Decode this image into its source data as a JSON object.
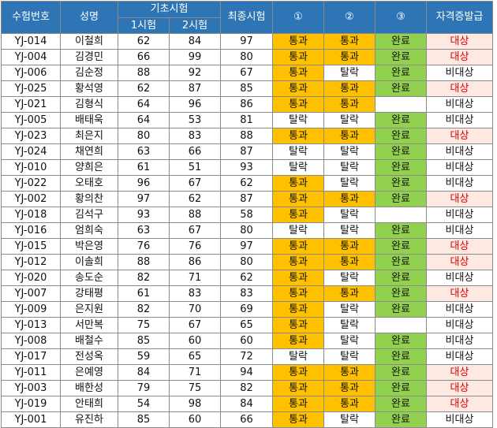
{
  "headers": {
    "exam_no": "수험번호",
    "name": "성명",
    "basic_exam": "기초시험",
    "exam1": "1시험",
    "exam2": "2시험",
    "final_exam": "최종시험",
    "c1": "①",
    "c2": "②",
    "c3": "③",
    "certificate": "자격증발급"
  },
  "colors": {
    "header_bg": "#2e75b6",
    "pass_bg": "#ffc000",
    "complete_bg": "#92d050",
    "target_bg": "#fde9e1",
    "target_text": "#e00000"
  },
  "rows": [
    {
      "id": "YJ-014",
      "name": "이철희",
      "s1": "62",
      "s2": "84",
      "final": "97",
      "c1": "통과",
      "c2": "통과",
      "c3": "완료",
      "cert": "대상"
    },
    {
      "id": "YJ-004",
      "name": "김경민",
      "s1": "66",
      "s2": "99",
      "final": "80",
      "c1": "통과",
      "c2": "통과",
      "c3": "완료",
      "cert": "대상"
    },
    {
      "id": "YJ-006",
      "name": "김순정",
      "s1": "88",
      "s2": "92",
      "final": "67",
      "c1": "통과",
      "c2": "탈락",
      "c3": "완료",
      "cert": "비대상"
    },
    {
      "id": "YJ-025",
      "name": "황석영",
      "s1": "62",
      "s2": "87",
      "final": "85",
      "c1": "통과",
      "c2": "통과",
      "c3": "완료",
      "cert": "대상"
    },
    {
      "id": "YJ-021",
      "name": "김형식",
      "s1": "64",
      "s2": "96",
      "final": "86",
      "c1": "통과",
      "c2": "통과",
      "c3": "",
      "cert": "비대상"
    },
    {
      "id": "YJ-005",
      "name": "배태욱",
      "s1": "64",
      "s2": "53",
      "final": "81",
      "c1": "탈락",
      "c2": "탈락",
      "c3": "완료",
      "cert": "비대상"
    },
    {
      "id": "YJ-023",
      "name": "최은지",
      "s1": "80",
      "s2": "83",
      "final": "88",
      "c1": "통과",
      "c2": "통과",
      "c3": "완료",
      "cert": "대상"
    },
    {
      "id": "YJ-024",
      "name": "채연희",
      "s1": "63",
      "s2": "66",
      "final": "87",
      "c1": "탈락",
      "c2": "탈락",
      "c3": "완료",
      "cert": "비대상"
    },
    {
      "id": "YJ-010",
      "name": "양희은",
      "s1": "61",
      "s2": "51",
      "final": "93",
      "c1": "탈락",
      "c2": "탈락",
      "c3": "완료",
      "cert": "비대상"
    },
    {
      "id": "YJ-022",
      "name": "오태호",
      "s1": "96",
      "s2": "67",
      "final": "62",
      "c1": "통과",
      "c2": "탈락",
      "c3": "완료",
      "cert": "비대상"
    },
    {
      "id": "YJ-002",
      "name": "황의찬",
      "s1": "97",
      "s2": "62",
      "final": "87",
      "c1": "통과",
      "c2": "통과",
      "c3": "완료",
      "cert": "대상"
    },
    {
      "id": "YJ-018",
      "name": "김석구",
      "s1": "93",
      "s2": "88",
      "final": "58",
      "c1": "통과",
      "c2": "탈락",
      "c3": "",
      "cert": "비대상"
    },
    {
      "id": "YJ-016",
      "name": "엄희숙",
      "s1": "63",
      "s2": "67",
      "final": "80",
      "c1": "탈락",
      "c2": "탈락",
      "c3": "완료",
      "cert": "비대상"
    },
    {
      "id": "YJ-015",
      "name": "박은영",
      "s1": "76",
      "s2": "76",
      "final": "97",
      "c1": "통과",
      "c2": "통과",
      "c3": "완료",
      "cert": "대상"
    },
    {
      "id": "YJ-012",
      "name": "이솔희",
      "s1": "88",
      "s2": "86",
      "final": "80",
      "c1": "통과",
      "c2": "통과",
      "c3": "완료",
      "cert": "대상"
    },
    {
      "id": "YJ-020",
      "name": "송도순",
      "s1": "82",
      "s2": "71",
      "final": "62",
      "c1": "통과",
      "c2": "탈락",
      "c3": "완료",
      "cert": "비대상"
    },
    {
      "id": "YJ-007",
      "name": "강태평",
      "s1": "61",
      "s2": "83",
      "final": "83",
      "c1": "통과",
      "c2": "통과",
      "c3": "완료",
      "cert": "대상"
    },
    {
      "id": "YJ-009",
      "name": "은지원",
      "s1": "82",
      "s2": "70",
      "final": "69",
      "c1": "통과",
      "c2": "탈락",
      "c3": "완료",
      "cert": "비대상"
    },
    {
      "id": "YJ-013",
      "name": "서만복",
      "s1": "75",
      "s2": "67",
      "final": "65",
      "c1": "통과",
      "c2": "탈락",
      "c3": "",
      "cert": "비대상"
    },
    {
      "id": "YJ-008",
      "name": "배철수",
      "s1": "85",
      "s2": "60",
      "final": "60",
      "c1": "통과",
      "c2": "탈락",
      "c3": "완료",
      "cert": "비대상"
    },
    {
      "id": "YJ-017",
      "name": "전성옥",
      "s1": "59",
      "s2": "65",
      "final": "72",
      "c1": "탈락",
      "c2": "탈락",
      "c3": "완료",
      "cert": "비대상"
    },
    {
      "id": "YJ-011",
      "name": "은예영",
      "s1": "84",
      "s2": "71",
      "final": "94",
      "c1": "통과",
      "c2": "통과",
      "c3": "완료",
      "cert": "대상"
    },
    {
      "id": "YJ-003",
      "name": "배한성",
      "s1": "79",
      "s2": "75",
      "final": "82",
      "c1": "통과",
      "c2": "통과",
      "c3": "완료",
      "cert": "대상"
    },
    {
      "id": "YJ-019",
      "name": "안태희",
      "s1": "54",
      "s2": "98",
      "final": "84",
      "c1": "통과",
      "c2": "통과",
      "c3": "완료",
      "cert": "대상"
    },
    {
      "id": "YJ-001",
      "name": "유진하",
      "s1": "85",
      "s2": "60",
      "final": "66",
      "c1": "통과",
      "c2": "탈락",
      "c3": "완료",
      "cert": "비대상"
    }
  ]
}
